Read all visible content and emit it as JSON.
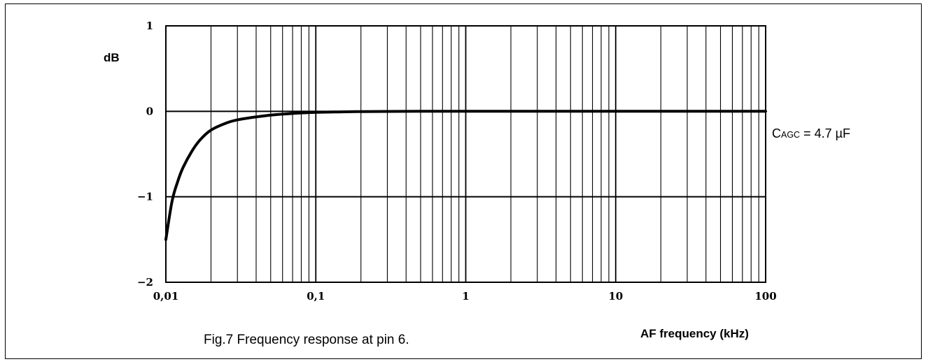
{
  "chart_data": {
    "type": "line",
    "title": "",
    "caption": "Fig.7  Frequency response at pin 6.",
    "xlabel": "AF frequency (kHz)",
    "ylabel": "dB",
    "xscale": "log",
    "xlim": [
      0.01,
      100
    ],
    "ylim": [
      -2,
      1
    ],
    "xticks": [
      0.01,
      0.1,
      1,
      10,
      100
    ],
    "xtick_labels": [
      "0,01",
      "0,1",
      "1",
      "10",
      "100"
    ],
    "yticks": [
      1,
      0,
      -1,
      -2
    ],
    "ytick_labels": [
      "1",
      "0",
      "−1",
      "−2"
    ],
    "grid": true,
    "line_color": "#000000",
    "annotation": {
      "main": "C",
      "subscript": "AGC",
      "rest": " = 4.7 µF"
    },
    "series": [
      {
        "x": [
          0.01,
          0.011,
          0.012,
          0.013,
          0.015,
          0.017,
          0.02,
          0.025,
          0.03,
          0.04,
          0.05,
          0.07,
          0.1,
          0.15,
          0.2,
          0.3,
          0.5,
          1,
          2,
          5,
          10,
          100
        ],
        "y": [
          -1.5,
          -1.05,
          -0.82,
          -0.66,
          -0.46,
          -0.33,
          -0.22,
          -0.14,
          -0.1,
          -0.065,
          -0.045,
          -0.025,
          -0.012,
          -0.006,
          -0.003,
          -0.001,
          0,
          0,
          0,
          0,
          0,
          0
        ]
      }
    ]
  }
}
